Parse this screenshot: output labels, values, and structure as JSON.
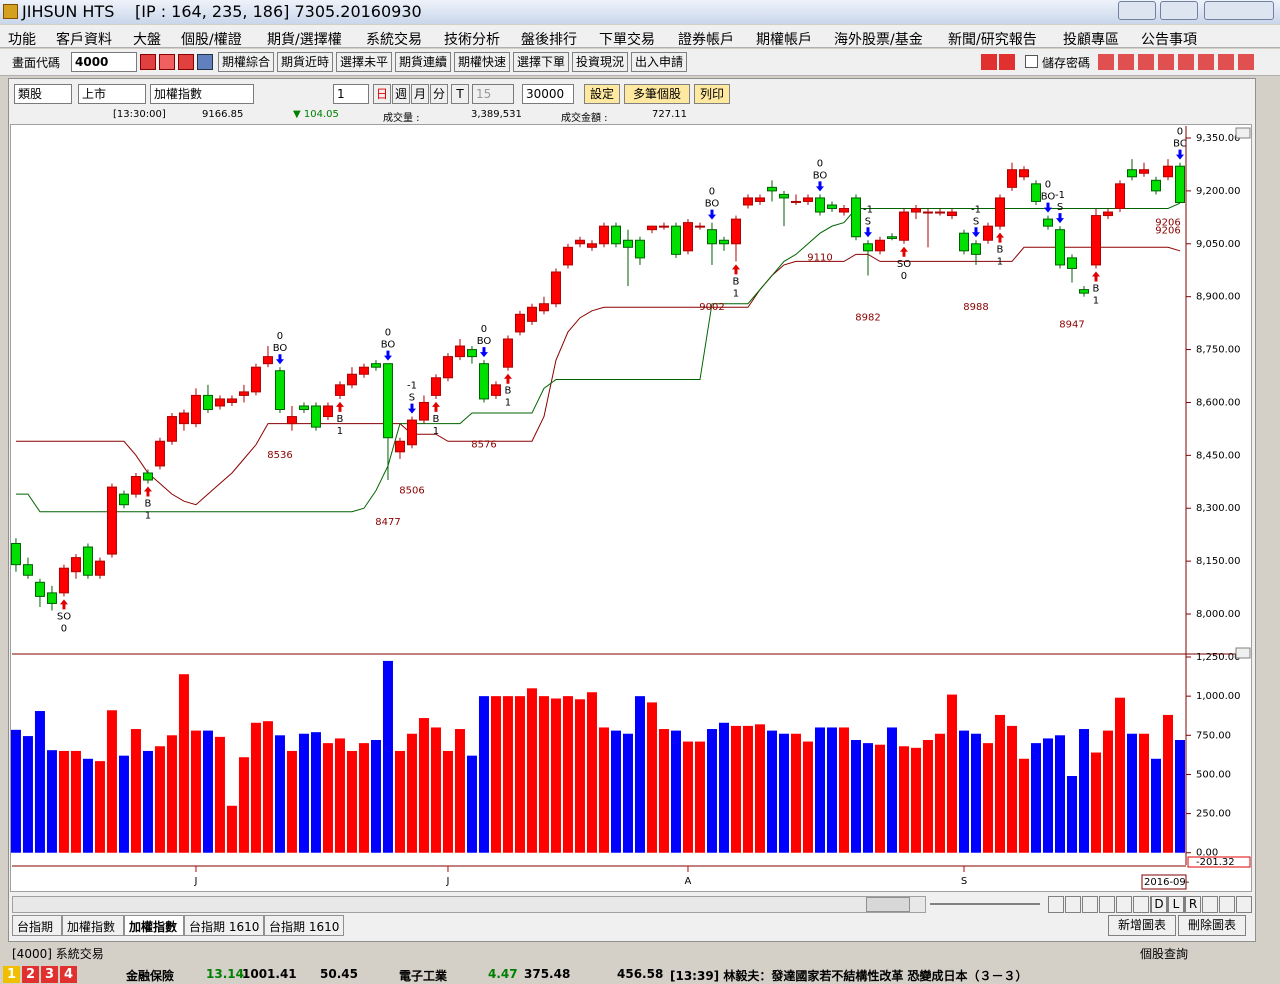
{
  "window": {
    "app": "JIHSUN HTS",
    "info": "[IP : 164, 235, 186] 7305.20160930"
  },
  "menu": [
    "功能",
    "客戶資料",
    "大盤",
    "個股/權證",
    "期貨/選擇權",
    "系統交易",
    "技術分析",
    "盤後排行",
    "下單交易",
    "證券帳戶",
    "期權帳戶",
    "海外股票/基金",
    "新聞/研究報告",
    "投顧專區",
    "公告事項"
  ],
  "toolbar": {
    "code_label": "畫面代碼",
    "code": "4000",
    "buttons": [
      "期權綜合",
      "期貨近時",
      "選擇未平",
      "期貨連續",
      "期權快速",
      "選擇下單",
      "投資現況",
      "出入申請"
    ],
    "save_password": "儲存密碼"
  },
  "chart_toolbar": {
    "group": "類股",
    "market": "上市",
    "symbol": "加權指數",
    "count": "1",
    "periods": [
      "日",
      "週",
      "月",
      "分",
      "T"
    ],
    "minutes": "15",
    "bars": "30000",
    "buttons": [
      "設定",
      "多筆個股",
      "列印"
    ]
  },
  "quote": {
    "time": "[13:30:00]",
    "price": "9166.85",
    "change": "▼ 104.05",
    "volume_label": "成交量 :",
    "volume": "3,389,531",
    "amount_label": "成交金額 :",
    "amount": "727.11"
  },
  "chart_data": {
    "type": "candlestick",
    "xlim": [
      -0.33,
      97.5
    ],
    "xticks": [
      {
        "value": 15,
        "label": "J"
      },
      {
        "value": 36,
        "label": "J"
      },
      {
        "value": 56,
        "label": "A"
      },
      {
        "value": 79,
        "label": "S"
      }
    ],
    "x_end_label": "2016-09-",
    "ylim": [
      7898,
      9384
    ],
    "yticks": [
      {
        "value": 8000,
        "label": "8,000.00"
      },
      {
        "value": 8150,
        "label": "8,150.00"
      },
      {
        "value": 8300,
        "label": "8,300.00"
      },
      {
        "value": 8450,
        "label": "8,450.00"
      },
      {
        "value": 8600,
        "label": "8,600.00"
      },
      {
        "value": 8750,
        "label": "8,750.00"
      },
      {
        "value": 8900,
        "label": "8,900.00"
      },
      {
        "value": 9050,
        "label": "9,050.00"
      },
      {
        "value": 9200,
        "label": "9,200.00"
      },
      {
        "value": 9350,
        "label": "9,350.00"
      }
    ],
    "up_color": "#ff0000",
    "down_color": "#00e000",
    "open": [
      8200,
      8140,
      8090,
      8060,
      8060,
      8120,
      8190,
      8110,
      8170,
      8340,
      8340,
      8400,
      8420,
      8490,
      8540,
      8540,
      8620,
      8590,
      8600,
      8620,
      8630,
      8710,
      8690,
      8540,
      8590,
      8590,
      8560,
      8620,
      8650,
      8680,
      8710,
      8710,
      8460,
      8480,
      8550,
      8620,
      8670,
      8730,
      8750,
      8710,
      8620,
      8700,
      8800,
      8830,
      8860,
      8880,
      8990,
      9050,
      9040,
      9050,
      9100,
      9060,
      9060,
      9090,
      9100,
      9100,
      9030,
      9100,
      9090,
      9060,
      9050,
      9160,
      9170,
      9210,
      9190,
      9170,
      9170,
      9180,
      9160,
      9140,
      9180,
      9050,
      9030,
      9070,
      9060,
      9140,
      9140,
      9140,
      9130,
      9080,
      9050,
      9060,
      9100,
      9210,
      9240,
      9220,
      9120,
      9090,
      9010,
      8920,
      8990,
      9130,
      9150,
      9260,
      9250,
      9230,
      9240,
      9270
    ],
    "high": [
      8215,
      8160,
      8100,
      8080,
      8140,
      8170,
      8200,
      8160,
      8370,
      8350,
      8400,
      8410,
      8500,
      8570,
      8580,
      8640,
      8650,
      8620,
      8620,
      8650,
      8710,
      8760,
      8700,
      8590,
      8600,
      8600,
      8600,
      8660,
      8700,
      8710,
      8720,
      8710,
      8500,
      8560,
      8620,
      8680,
      8740,
      8780,
      8760,
      8720,
      8660,
      8790,
      8860,
      8880,
      8900,
      8980,
      9050,
      9070,
      9060,
      9110,
      9110,
      9090,
      9070,
      9100,
      9110,
      9110,
      9120,
      9110,
      9110,
      9070,
      9130,
      9190,
      9190,
      9230,
      9200,
      9190,
      9190,
      9190,
      9170,
      9160,
      9190,
      9060,
      9070,
      9080,
      9150,
      9160,
      9150,
      9150,
      9150,
      9090,
      9060,
      9110,
      9190,
      9280,
      9270,
      9230,
      9130,
      9100,
      9020,
      8930,
      9150,
      9150,
      9230,
      9290,
      9280,
      9240,
      9290,
      9280
    ],
    "low": [
      8120,
      8100,
      8020,
      8010,
      8050,
      8100,
      8100,
      8100,
      8160,
      8300,
      8330,
      8370,
      8410,
      8480,
      8520,
      8530,
      8570,
      8580,
      8590,
      8600,
      8620,
      8700,
      8570,
      8520,
      8570,
      8520,
      8550,
      8610,
      8640,
      8670,
      8690,
      8380,
      8440,
      8470,
      8540,
      8610,
      8660,
      8720,
      8710,
      8600,
      8610,
      8690,
      8790,
      8820,
      8850,
      8870,
      8980,
      9040,
      9030,
      9040,
      9040,
      8930,
      8990,
      9080,
      9090,
      9010,
      9020,
      9090,
      8990,
      9030,
      9000,
      9150,
      9160,
      9170,
      9100,
      9160,
      9160,
      9130,
      9140,
      9130,
      9060,
      8960,
      9020,
      9060,
      9050,
      9120,
      9040,
      9130,
      9120,
      9020,
      8990,
      9050,
      9090,
      9200,
      9230,
      9160,
      9090,
      8980,
      8940,
      8900,
      8980,
      9120,
      9140,
      9230,
      9240,
      9190,
      9230,
      9180
    ],
    "close": [
      8140,
      8110,
      8050,
      8030,
      8130,
      8160,
      8110,
      8150,
      8360,
      8310,
      8390,
      8380,
      8490,
      8560,
      8570,
      8620,
      8580,
      8610,
      8610,
      8630,
      8700,
      8730,
      8580,
      8560,
      8580,
      8530,
      8590,
      8650,
      8680,
      8700,
      8700,
      8500,
      8490,
      8550,
      8600,
      8670,
      8730,
      8760,
      8730,
      8610,
      8650,
      8780,
      8850,
      8870,
      8880,
      8970,
      9040,
      9060,
      9050,
      9100,
      9050,
      9040,
      9010,
      9100,
      9100,
      9020,
      9110,
      9100,
      9050,
      9050,
      9120,
      9180,
      9180,
      9200,
      9180,
      9170,
      9180,
      9140,
      9150,
      9150,
      9070,
      9030,
      9060,
      9065,
      9140,
      9150,
      9140,
      9140,
      9140,
      9030,
      9020,
      9100,
      9180,
      9260,
      9260,
      9170,
      9100,
      8990,
      8980,
      8910,
      9130,
      9140,
      9220,
      9240,
      9260,
      9200,
      9270,
      9167
    ],
    "overlays": [
      {
        "color": "#8b0000",
        "values": [
          8490,
          8490,
          8490,
          8490,
          8490,
          8490,
          8490,
          8490,
          8490,
          8490,
          8450,
          8400,
          8370,
          8340,
          8320,
          8310,
          8340,
          8370,
          8400,
          8440,
          8480,
          8540,
          8540,
          8540,
          8540,
          8540,
          8540,
          8540,
          8540,
          8540,
          8540,
          8540,
          8540,
          8510,
          8510,
          8510,
          8490,
          8490,
          8490,
          8490,
          8490,
          8490,
          8490,
          8490,
          8560,
          8720,
          8800,
          8840,
          8860,
          8870,
          8870,
          8870,
          8870,
          8870,
          8870,
          8870,
          8870,
          8870,
          8870,
          8870,
          8870,
          8870,
          8920,
          8960,
          8990,
          9000,
          9000,
          9000,
          9000,
          9000,
          9020,
          9020,
          9000,
          9000,
          9000,
          9000,
          9000,
          9000,
          9000,
          9000,
          9000,
          9000,
          9000,
          9000,
          9040,
          9040,
          9040,
          9040,
          9040,
          9040,
          9040,
          9040,
          9040,
          9040,
          9040,
          9040,
          9040,
          9030
        ]
      },
      {
        "color": "#006400",
        "values": [
          8340,
          8340,
          8290,
          8290,
          8290,
          8290,
          8290,
          8290,
          8290,
          8290,
          8290,
          8290,
          8290,
          8290,
          8290,
          8290,
          8290,
          8290,
          8290,
          8290,
          8290,
          8290,
          8290,
          8290,
          8290,
          8290,
          8290,
          8290,
          8290,
          8300,
          8350,
          8420,
          8540,
          8540,
          8540,
          8540,
          8540,
          8540,
          8570,
          8570,
          8570,
          8570,
          8570,
          8570,
          8640,
          8665,
          8665,
          8665,
          8665,
          8665,
          8665,
          8665,
          8665,
          8665,
          8665,
          8665,
          8665,
          8665,
          8880,
          8880,
          8880,
          8880,
          8920,
          8960,
          9000,
          9020,
          9050,
          9080,
          9100,
          9110,
          9150,
          9150,
          9150,
          9150,
          9150,
          9150,
          9150,
          9150,
          9150,
          9150,
          9150,
          9150,
          9150,
          9150,
          9150,
          9150,
          9150,
          9150,
          9150,
          9150,
          9150,
          9150,
          9150,
          9150,
          9150,
          9150,
          9150,
          9165
        ]
      }
    ],
    "signals": [
      {
        "index": 4,
        "side": "buy",
        "label": "SO",
        "qty": "0"
      },
      {
        "index": 11,
        "side": "buy",
        "label": "B",
        "qty": "1"
      },
      {
        "index": 22,
        "side": "sell",
        "label": "BO",
        "qty": "0"
      },
      {
        "index": 27,
        "side": "buy",
        "label": "B",
        "qty": "1"
      },
      {
        "index": 31,
        "side": "sell",
        "label": "BO",
        "qty": "0"
      },
      {
        "index": 33,
        "side": "sell",
        "label": "S",
        "qty": "-1"
      },
      {
        "index": 35,
        "side": "buy",
        "label": "B",
        "qty": "1"
      },
      {
        "index": 39,
        "side": "sell",
        "label": "BO",
        "qty": "0"
      },
      {
        "index": 41,
        "side": "buy",
        "label": "B",
        "qty": "1"
      },
      {
        "index": 58,
        "side": "sell",
        "label": "BO",
        "qty": "0"
      },
      {
        "index": 60,
        "side": "buy",
        "label": "B",
        "qty": "1"
      },
      {
        "index": 67,
        "side": "sell",
        "label": "BO",
        "qty": "0"
      },
      {
        "index": 71,
        "side": "sell",
        "label": "S",
        "qty": "-1"
      },
      {
        "index": 74,
        "side": "buy",
        "label": "SO",
        "qty": "0"
      },
      {
        "index": 80,
        "side": "sell",
        "label": "S",
        "qty": "-1"
      },
      {
        "index": 82,
        "side": "buy",
        "label": "B",
        "qty": "1"
      },
      {
        "index": 86,
        "side": "sell",
        "label": "BO",
        "qty": "0"
      },
      {
        "index": 87,
        "side": "sell",
        "label": "S",
        "qty": "-1"
      },
      {
        "index": 90,
        "side": "buy",
        "label": "B",
        "qty": "1"
      },
      {
        "index": 97,
        "side": "sell",
        "label": "BC",
        "qty": "0"
      }
    ],
    "price_labels": [
      {
        "index": 22,
        "value": 8536
      },
      {
        "index": 31,
        "value": 8477
      },
      {
        "index": 33,
        "value": 8506
      },
      {
        "index": 39,
        "value": 8576
      },
      {
        "index": 58,
        "value": 9002
      },
      {
        "index": 67,
        "value": 9110
      },
      {
        "index": 71,
        "value": 8982
      },
      {
        "index": 80,
        "value": 8988
      },
      {
        "index": 88,
        "value": 8947
      },
      {
        "index": 96,
        "value": 9206
      },
      {
        "index": 96,
        "value": 9206
      }
    ],
    "volume": {
      "up_color": "#ff0000",
      "down_color": "#0000ff",
      "ylim": [
        -40,
        1250
      ],
      "yticks": [
        {
          "value": 0,
          "label": "0.00"
        },
        {
          "value": 250,
          "label": "250.00"
        },
        {
          "value": 500,
          "label": "500.00"
        },
        {
          "value": 750,
          "label": "750.00"
        },
        {
          "value": 1000,
          "label": "1,000.00"
        },
        {
          "value": 1250,
          "label": "1,250.00"
        }
      ],
      "bottom_label": "-201.32",
      "values": [
        785,
        745,
        905,
        655,
        650,
        650,
        600,
        585,
        910,
        620,
        790,
        650,
        680,
        750,
        1140,
        780,
        780,
        740,
        300,
        610,
        830,
        840,
        750,
        650,
        760,
        770,
        700,
        730,
        650,
        700,
        720,
        1225,
        650,
        760,
        860,
        800,
        650,
        790,
        620,
        1000,
        1000,
        1000,
        1000,
        1050,
        1000,
        985,
        1000,
        980,
        1025,
        800,
        780,
        760,
        1000,
        960,
        790,
        780,
        710,
        710,
        790,
        830,
        810,
        810,
        820,
        780,
        760,
        760,
        710,
        800,
        800,
        800,
        720,
        700,
        690,
        800,
        680,
        670,
        720,
        760,
        1010,
        780,
        760,
        700,
        880,
        810,
        600,
        700,
        730,
        750,
        490,
        790,
        640,
        780,
        990,
        760,
        760,
        600,
        880,
        720
      ]
    }
  },
  "tabs": [
    "台指期",
    "加權指數",
    "加權指數",
    "台指期 1610",
    "台指期 1610"
  ],
  "nav_buttons": [
    "D",
    "L",
    "R"
  ],
  "chart_buttons": [
    "新增圖表",
    "刪除圖表"
  ],
  "status": {
    "left": "[4000] 系統交易",
    "right": "個股查詢"
  },
  "ticker": {
    "pages": [
      "1",
      "2",
      "3",
      "4"
    ],
    "items": [
      {
        "name": "金融保險",
        "change": "13.14",
        "index": "1001.41",
        "amount": "50.45"
      },
      {
        "name": "電子工業",
        "change": "4.47",
        "index": "375.48",
        "amount": "456.58"
      }
    ],
    "news": "[13:39] 林毅夫：發達國家若不結構性改革 恐變成日本（３－３）"
  }
}
